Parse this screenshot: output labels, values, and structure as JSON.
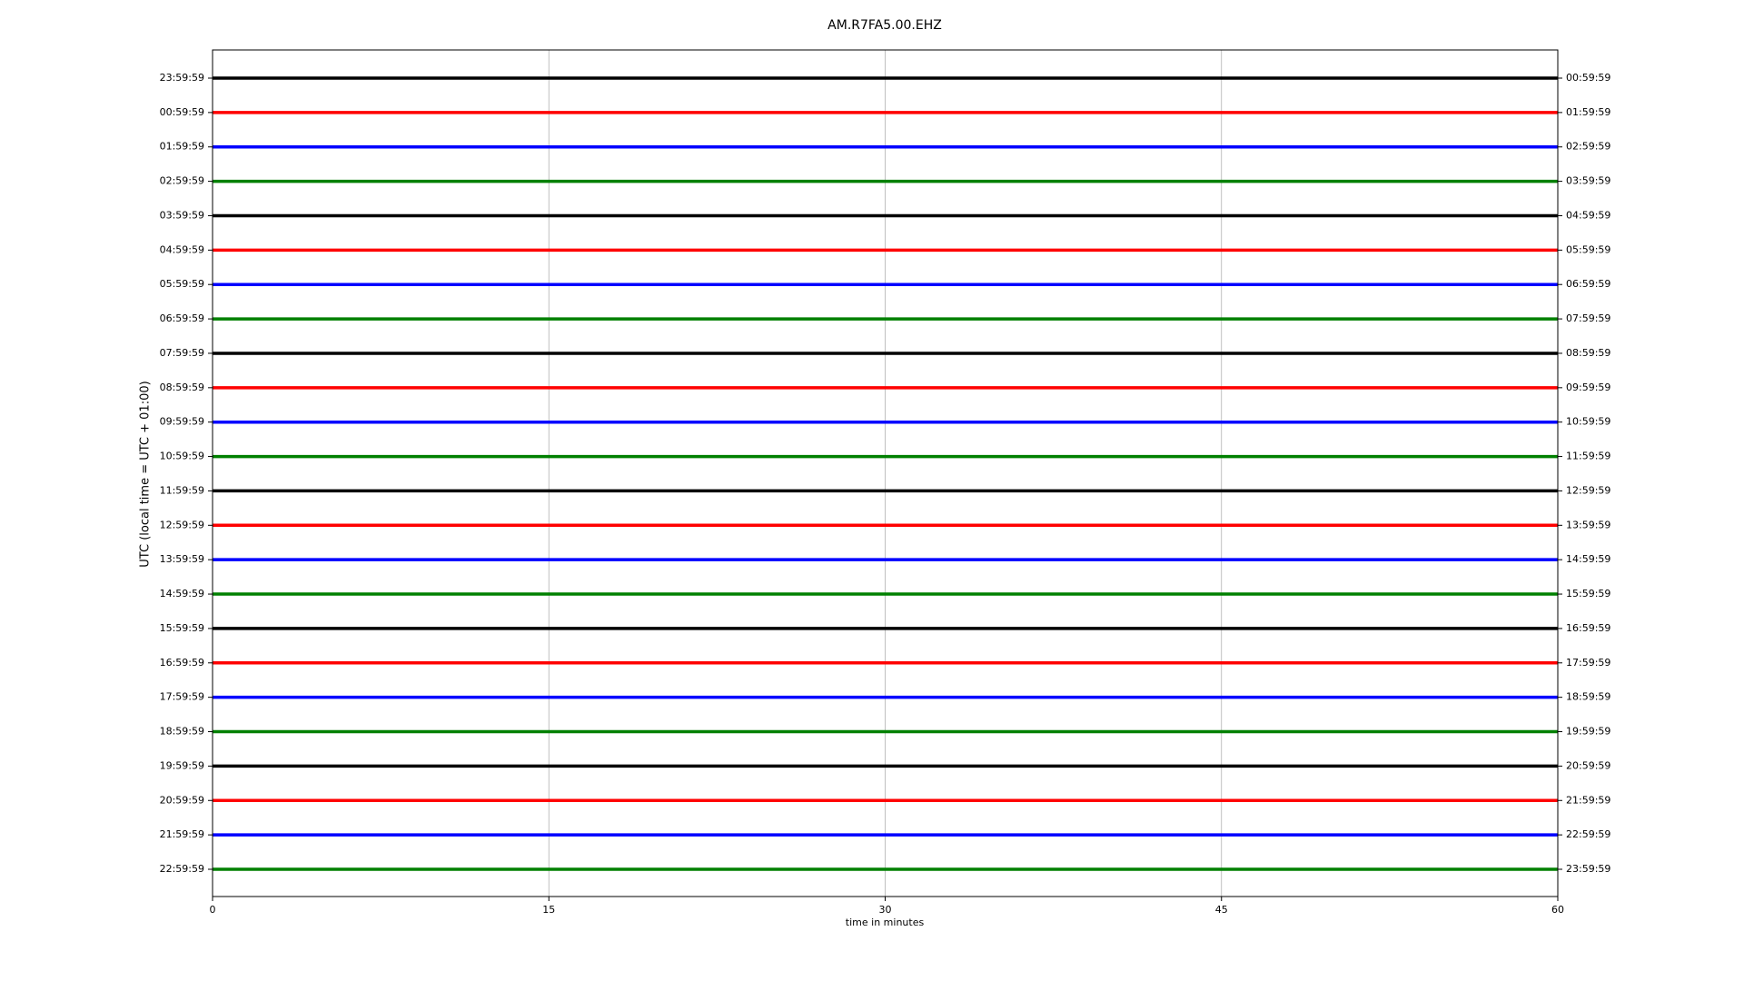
{
  "chart_data": {
    "type": "helicorder",
    "title": "AM.R7FA5.00.EHZ",
    "xlabel": "time in minutes",
    "ylabel": "UTC (local time = UTC + 01:00)",
    "xlim": [
      0,
      60
    ],
    "xticks": [
      0,
      15,
      30,
      45,
      60
    ],
    "grid": true,
    "categories": [
      "23:59:59",
      "00:59:59",
      "01:59:59",
      "02:59:59",
      "03:59:59",
      "04:59:59",
      "05:59:59",
      "06:59:59",
      "07:59:59",
      "08:59:59",
      "09:59:59",
      "10:59:59",
      "11:59:59",
      "12:59:59",
      "13:59:59",
      "14:59:59",
      "15:59:59",
      "16:59:59",
      "17:59:59",
      "18:59:59",
      "19:59:59",
      "20:59:59",
      "21:59:59",
      "22:59:59"
    ],
    "right_categories": [
      "00:59:59",
      "01:59:59",
      "02:59:59",
      "03:59:59",
      "04:59:59",
      "05:59:59",
      "06:59:59",
      "07:59:59",
      "08:59:59",
      "09:59:59",
      "10:59:59",
      "11:59:59",
      "12:59:59",
      "13:59:59",
      "14:59:59",
      "15:59:59",
      "16:59:59",
      "17:59:59",
      "18:59:59",
      "19:59:59",
      "20:59:59",
      "21:59:59",
      "22:59:59",
      "23:59:59"
    ],
    "colors": [
      "#000000",
      "#ff0000",
      "#0000ff",
      "#008000"
    ]
  }
}
